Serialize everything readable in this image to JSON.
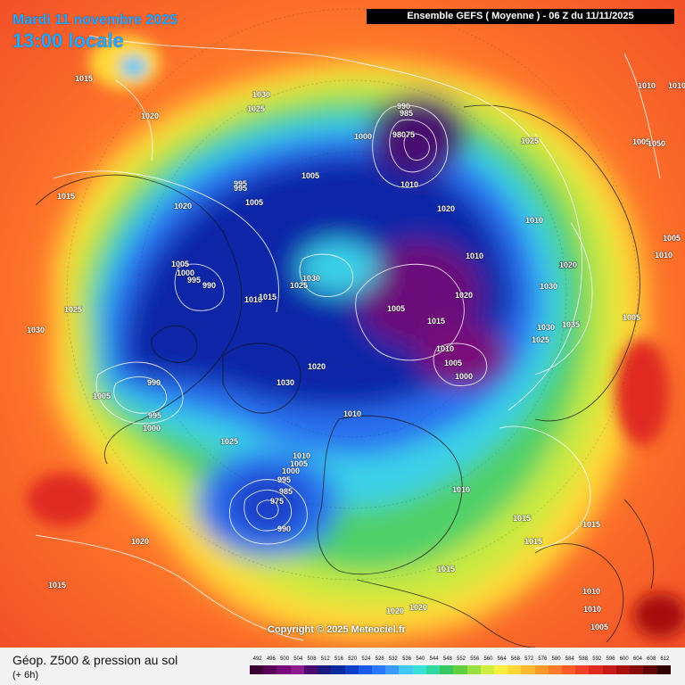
{
  "header": {
    "date_text": "Mardi 11 novembre 2025",
    "local_time_text": "13:00 locale",
    "run_info": "Ensemble GEFS  ( Moyenne )  -  06 Z du 11/11/2025"
  },
  "footer": {
    "title": "Géop. Z500 & pression au sol",
    "subtitle": "(+ 6h)",
    "copyright": "Copyright © 2025 Meteociel.fr"
  },
  "scale": {
    "labels": [
      "492",
      "496",
      "500",
      "504",
      "508",
      "512",
      "516",
      "520",
      "524",
      "528",
      "532",
      "536",
      "540",
      "544",
      "548",
      "552",
      "556",
      "560",
      "564",
      "568",
      "572",
      "576",
      "580",
      "584",
      "588",
      "592",
      "596",
      "600",
      "604",
      "608",
      "612"
    ],
    "colors": [
      "#3a0030",
      "#5a005a",
      "#7a0a7a",
      "#8e1a8e",
      "#4a0a70",
      "#1a1a80",
      "#0a2aa0",
      "#0a40c8",
      "#1a5ae8",
      "#2a78ff",
      "#3a9aff",
      "#42c8ff",
      "#3ae0d8",
      "#30d8a0",
      "#38c860",
      "#60d040",
      "#98e040",
      "#d0ee40",
      "#f8f040",
      "#ffd838",
      "#ffb830",
      "#ff9828",
      "#ff7a28",
      "#ff5a28",
      "#f04028",
      "#e02a20",
      "#c81a18",
      "#a81010",
      "#880a0a",
      "#600606",
      "#300000"
    ]
  },
  "isobars": [
    "1015",
    "1020",
    "1030",
    "1025",
    "990",
    "985",
    "1000",
    "98075",
    "1010",
    "1005",
    "1015",
    "1020",
    "995",
    "995",
    "1005",
    "1020",
    "1005",
    "1000",
    "995",
    "990",
    "1025",
    "1030",
    "1010",
    "1015",
    "1030",
    "1025",
    "1020",
    "1010",
    "1005",
    "1015",
    "1020",
    "1020",
    "1030",
    "1035",
    "1025",
    "1030",
    "1005",
    "1010",
    "1005",
    "1000",
    "1005",
    "990",
    "995",
    "1000",
    "1025",
    "1010",
    "1005",
    "1000",
    "995",
    "985",
    "975",
    "990",
    "1010",
    "1010",
    "1015",
    "1015",
    "1015",
    "1020",
    "1015",
    "1020",
    "1020",
    "1015",
    "1010",
    "1010",
    "1005",
    "1010",
    "1010",
    "1005",
    "1050",
    "1010",
    "1010",
    "1025",
    "1030",
    "1005",
    "1020"
  ]
}
